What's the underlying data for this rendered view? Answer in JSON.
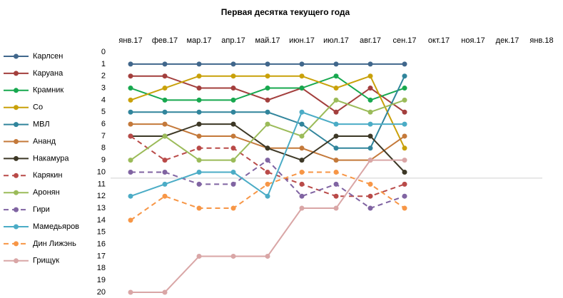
{
  "chart_data": {
    "type": "line",
    "title": "Первая десятка текущего года",
    "categories": [
      "янв.17",
      "фев.17",
      "мар.17",
      "апр.17",
      "май.17",
      "июн.17",
      "июл.17",
      "авг.17",
      "сен.17",
      "окт.17",
      "ноя.17",
      "дек.17",
      "янв.18"
    ],
    "ylim": [
      0,
      20
    ],
    "y_inverted": true,
    "yticks": [
      0,
      1,
      2,
      3,
      4,
      5,
      6,
      7,
      8,
      9,
      10,
      11,
      12,
      13,
      14,
      15,
      16,
      17,
      18,
      19,
      20
    ],
    "reference_line": 10.5,
    "legend": "left",
    "series": [
      {
        "name": "Карлсен",
        "color": "#41678c",
        "dashed": false,
        "values": [
          1,
          1,
          1,
          1,
          1,
          1,
          1,
          1,
          1,
          null,
          null,
          null,
          null
        ]
      },
      {
        "name": "Каруана",
        "color": "#a33f3d",
        "dashed": false,
        "values": [
          2,
          2,
          3,
          3,
          4,
          3,
          5,
          3,
          5,
          null,
          null,
          null,
          null
        ]
      },
      {
        "name": "Крамник",
        "color": "#17a84f",
        "dashed": false,
        "values": [
          3,
          4,
          4,
          4,
          3,
          3,
          2,
          4,
          3,
          null,
          null,
          null,
          null
        ]
      },
      {
        "name": "Со",
        "color": "#c9a10a",
        "dashed": false,
        "values": [
          4,
          3,
          2,
          2,
          2,
          2,
          3,
          2,
          8,
          null,
          null,
          null,
          null
        ]
      },
      {
        "name": "МВЛ",
        "color": "#31859c",
        "dashed": false,
        "values": [
          5,
          5,
          5,
          5,
          5,
          6,
          8,
          8,
          2,
          null,
          null,
          null,
          null
        ]
      },
      {
        "name": "Ананд",
        "color": "#c4793a",
        "dashed": false,
        "values": [
          6,
          6,
          7,
          7,
          8,
          8,
          9,
          9,
          7,
          null,
          null,
          null,
          null
        ]
      },
      {
        "name": "Накамура",
        "color": "#3d3826",
        "dashed": false,
        "values": [
          7,
          7,
          6,
          6,
          8,
          9,
          7,
          7,
          10,
          null,
          null,
          null,
          null
        ]
      },
      {
        "name": "Карякин",
        "color": "#b94a48",
        "dashed": true,
        "values": [
          7,
          9,
          8,
          8,
          10,
          11,
          12,
          12,
          11,
          null,
          null,
          null,
          null
        ]
      },
      {
        "name": "Аронян",
        "color": "#9bbb59",
        "dashed": false,
        "values": [
          9,
          7,
          9,
          9,
          6,
          7,
          4,
          5,
          4,
          null,
          null,
          null,
          null
        ]
      },
      {
        "name": "Гири",
        "color": "#8064a2",
        "dashed": true,
        "values": [
          10,
          10,
          11,
          11,
          9,
          12,
          11,
          13,
          12,
          null,
          null,
          null,
          null
        ]
      },
      {
        "name": "Мамедьяров",
        "color": "#4bacc6",
        "dashed": false,
        "values": [
          12,
          11,
          10,
          10,
          12,
          5,
          6,
          6,
          6,
          null,
          null,
          null,
          null
        ]
      },
      {
        "name": "Дин Лижэнь",
        "color": "#f79646",
        "dashed": true,
        "values": [
          14,
          12,
          13,
          13,
          11,
          10,
          10,
          11,
          13,
          null,
          null,
          null,
          null
        ]
      },
      {
        "name": "Грищук",
        "color": "#d9a6a6",
        "dashed": false,
        "values": [
          20,
          20,
          17,
          17,
          17,
          13,
          13,
          9,
          9,
          null,
          null,
          null,
          null
        ]
      }
    ]
  }
}
